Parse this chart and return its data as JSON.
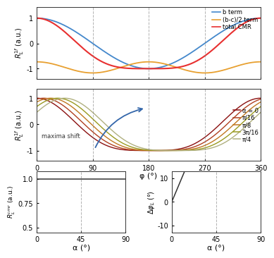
{
  "b": 1.0,
  "c": 0.5,
  "top_colors": {
    "b_term": "#4488CC",
    "bc_term": "#E8A030",
    "total_cmr": "#E83030"
  },
  "alpha_values": [
    0.0,
    0.19635,
    0.3927,
    0.58905,
    0.7854
  ],
  "alpha_labels": [
    "α = 0",
    "π/16",
    "π/8",
    "3π/16",
    "π/4"
  ],
  "alpha_colors": [
    "#8B1010",
    "#B04020",
    "#C07820",
    "#9A9A20",
    "#B0B080"
  ],
  "phi_ticks": [
    0,
    90,
    180,
    270,
    360
  ],
  "phi_vlines": [
    90,
    180,
    270
  ],
  "alpha_ticks": [
    0,
    45,
    90
  ],
  "alpha_vlines": [
    0,
    45,
    90
  ],
  "xlabel_phi": "φ (°)",
  "xlabel_alpha": "α (°)",
  "amp_yticks": [
    0.5,
    0.75,
    1.0
  ],
  "amp_ylim": [
    0.45,
    1.08
  ],
  "phase_yticks": [
    -10,
    0,
    10
  ],
  "phase_ylim": [
    -13,
    13
  ],
  "background_color": "#ffffff"
}
